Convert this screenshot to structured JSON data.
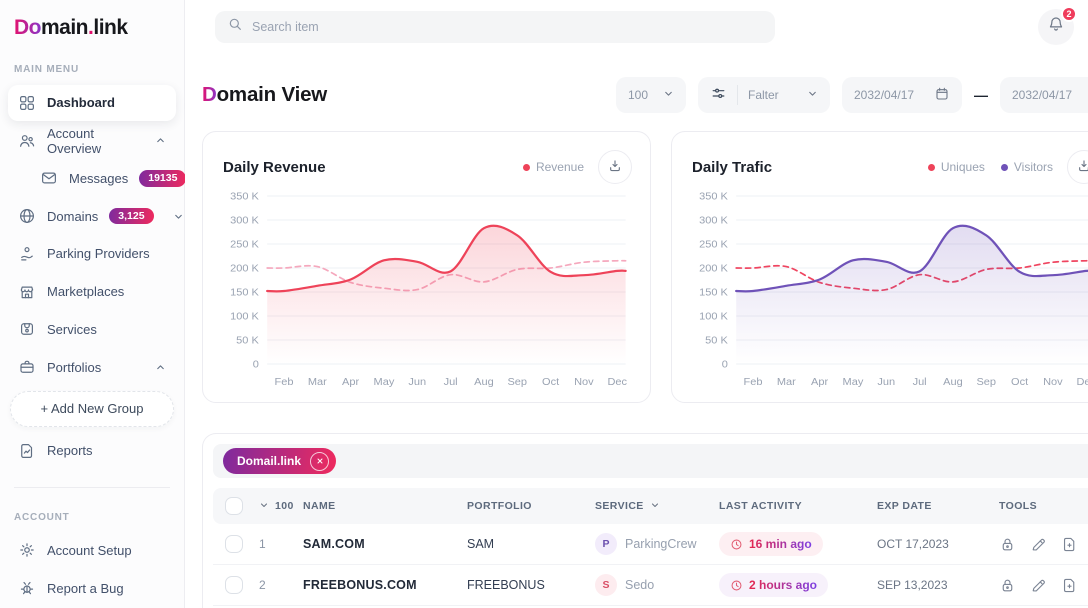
{
  "colors": {
    "logo_start": "#e3126e",
    "logo_end": "#8936c9",
    "accent_start": "#7e2a9e",
    "accent_end": "#ef2a5d",
    "badge_red": "#ef3c5c",
    "time_start": "#e6274d",
    "time_end": "#7b3fe4"
  },
  "brand": {
    "prefix": "Do",
    "mid": "main",
    "dot": ".",
    "tld": "link"
  },
  "sidebar": {
    "main_label": "MAIN MENU",
    "items": [
      {
        "label": "Dashboard"
      },
      {
        "label": "Account Overview"
      },
      {
        "label": "Messages",
        "badge": "19135"
      },
      {
        "label": "Domains",
        "badge": "3,125"
      },
      {
        "label": "Parking Providers"
      },
      {
        "label": "Marketplaces"
      },
      {
        "label": "Services"
      },
      {
        "label": "Portfolios"
      },
      {
        "label": "+   Add New Group"
      },
      {
        "label": "Reports"
      }
    ],
    "account_label": "ACCOUNT",
    "account_items": [
      {
        "label": "Account Setup"
      },
      {
        "label": "Report a Bug"
      }
    ]
  },
  "topbar": {
    "search_placeholder": "Search item",
    "notification_count": "2"
  },
  "page": {
    "title_initial": "D",
    "title_rest": "omain View"
  },
  "controls": {
    "page_size": "100",
    "filter_label": "Falter",
    "date_from": "2032/04/17",
    "date_separator": "—",
    "date_to": "2032/04/17"
  },
  "chart_data": [
    {
      "id": "revenue",
      "type": "line",
      "title": "Daily Revenue",
      "legend": [
        {
          "label": "Revenue",
          "color": "#ee4359"
        }
      ],
      "legend_position": "top-right",
      "grid": true,
      "x": [
        "Feb",
        "Mar",
        "Apr",
        "May",
        "Jun",
        "Jul",
        "Aug",
        "Sep",
        "Oct",
        "Nov",
        "Dec"
      ],
      "ylabel": "K",
      "ylim": [
        0,
        350
      ],
      "yticks": [
        {
          "value": 350,
          "label": "350 K"
        },
        {
          "value": 300,
          "label": "300 K"
        },
        {
          "value": 250,
          "label": "250 K"
        },
        {
          "value": 200,
          "label": "200 K"
        },
        {
          "value": 150,
          "label": "150 K"
        },
        {
          "value": 100,
          "label": "100 K"
        },
        {
          "value": 50,
          "label": "50 K"
        },
        {
          "value": 0,
          "label": "0"
        }
      ],
      "series": [
        {
          "name": "Revenue",
          "style": "solid",
          "color": "#ee4359",
          "fill_from": "rgba(238,67,89,0.22)",
          "fill_to": "rgba(238,67,89,0)",
          "values": [
            152,
            163,
            176,
            216,
            213,
            193,
            283,
            268,
            192,
            185,
            194
          ]
        },
        {
          "name": "",
          "style": "dashed",
          "color": "#f5a8bd",
          "values": [
            200,
            203,
            170,
            158,
            155,
            186,
            171,
            197,
            200,
            212,
            215
          ]
        }
      ]
    },
    {
      "id": "traffic",
      "type": "line",
      "title": "Daily Trafic",
      "legend": [
        {
          "label": "Uniques",
          "color": "#ee4359"
        },
        {
          "label": "Visitors",
          "color": "#6f52b8"
        }
      ],
      "legend_position": "top-right",
      "grid": true,
      "x": [
        "Feb",
        "Mar",
        "Apr",
        "May",
        "Jun",
        "Jul",
        "Aug",
        "Sep",
        "Oct",
        "Nov",
        "Dec"
      ],
      "ylabel": "K",
      "ylim": [
        0,
        350
      ],
      "yticks": [
        {
          "value": 350,
          "label": "350 K"
        },
        {
          "value": 300,
          "label": "300 K"
        },
        {
          "value": 250,
          "label": "250 K"
        },
        {
          "value": 200,
          "label": "200 K"
        },
        {
          "value": 150,
          "label": "150 K"
        },
        {
          "value": 100,
          "label": "100 K"
        },
        {
          "value": 50,
          "label": "50 K"
        },
        {
          "value": 0,
          "label": "0"
        }
      ],
      "series": [
        {
          "name": "Visitors",
          "style": "solid",
          "color": "#6f52b8",
          "fill_from": "rgba(111,82,184,0.20)",
          "fill_to": "rgba(111,82,184,0)",
          "values": [
            152,
            163,
            176,
            216,
            213,
            193,
            283,
            268,
            192,
            185,
            194
          ]
        },
        {
          "name": "Uniques",
          "style": "dashed",
          "color": "#ef4560",
          "values": [
            200,
            203,
            170,
            158,
            155,
            186,
            171,
            197,
            200,
            212,
            215
          ]
        }
      ]
    }
  ],
  "table": {
    "tag_label": "Domail.link",
    "columns": {
      "count": "100",
      "name": "NAME",
      "portfolio": "PORTFOLIO",
      "service": "SERVICE",
      "last_activity": "LAST ACTIVITY",
      "exp_date": "EXP DATE",
      "tools": "TOOLS"
    },
    "rows": [
      {
        "num": "1",
        "name": "SAM.COM",
        "portfolio": "SAM",
        "service_initial": "P",
        "service": "ParkingCrew",
        "last_activity": "16 min ago",
        "activity_bg": "#fdeff2",
        "exp_date": "OCT 17,2023"
      },
      {
        "num": "2",
        "name": "FREEBONUS.COM",
        "portfolio": "FREEBONUS",
        "service_initial": "S",
        "service": "Sedo",
        "last_activity": "2 hours ago",
        "activity_bg": "#f7f1fb",
        "exp_date": "SEP 13,2023"
      }
    ]
  }
}
